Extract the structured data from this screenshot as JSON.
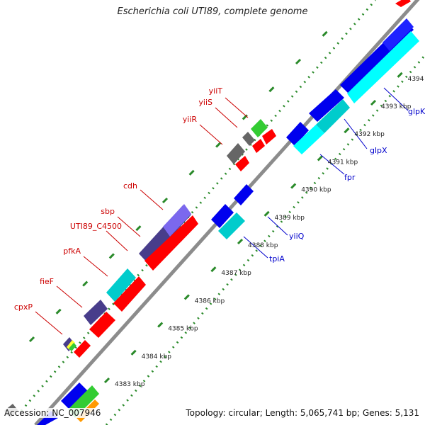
{
  "header": {
    "title": "Escherichia coli UTI89, complete genome"
  },
  "footer": {
    "accession": "Accession: NC_007946",
    "summary": "Topology: circular; Length: 5,065,741 bp; Genes: 5,131"
  },
  "colors": {
    "backbone": "#8c8c8c",
    "tick": "#2a8a2a",
    "tick_label": "#222222",
    "label_forward": "#cc0000",
    "label_reverse": "#0000cc",
    "red": "#ff0000",
    "blue": "#0000ee",
    "cyan": "#00cccc",
    "slate": "#483d8b",
    "gray": "#666666",
    "green": "#33cc33",
    "orange": "#ff9900",
    "yellow": "#ffff33"
  },
  "ticks": [
    {
      "label": "4383 kbp"
    },
    {
      "label": "4384 kbp"
    },
    {
      "label": "4385 kbp"
    },
    {
      "label": "4386 kbp"
    },
    {
      "label": "4387 kbp"
    },
    {
      "label": "4388 kbp"
    },
    {
      "label": "4389 kbp"
    },
    {
      "label": "4390 kbp"
    },
    {
      "label": "4391 kbp"
    },
    {
      "label": "4392 kbp"
    },
    {
      "label": "4393 kbp"
    },
    {
      "label": "4394 kbp"
    }
  ],
  "genes_forward_labels": [
    "yiiT",
    "yiiS",
    "yiiR",
    "cdh",
    "sbp",
    "UTI89_C4500",
    "pfkA",
    "fieF",
    "cpxP"
  ],
  "genes_reverse_labels": [
    "glpK",
    "glpX",
    "fpr",
    "yiiQ",
    "tpiA"
  ]
}
